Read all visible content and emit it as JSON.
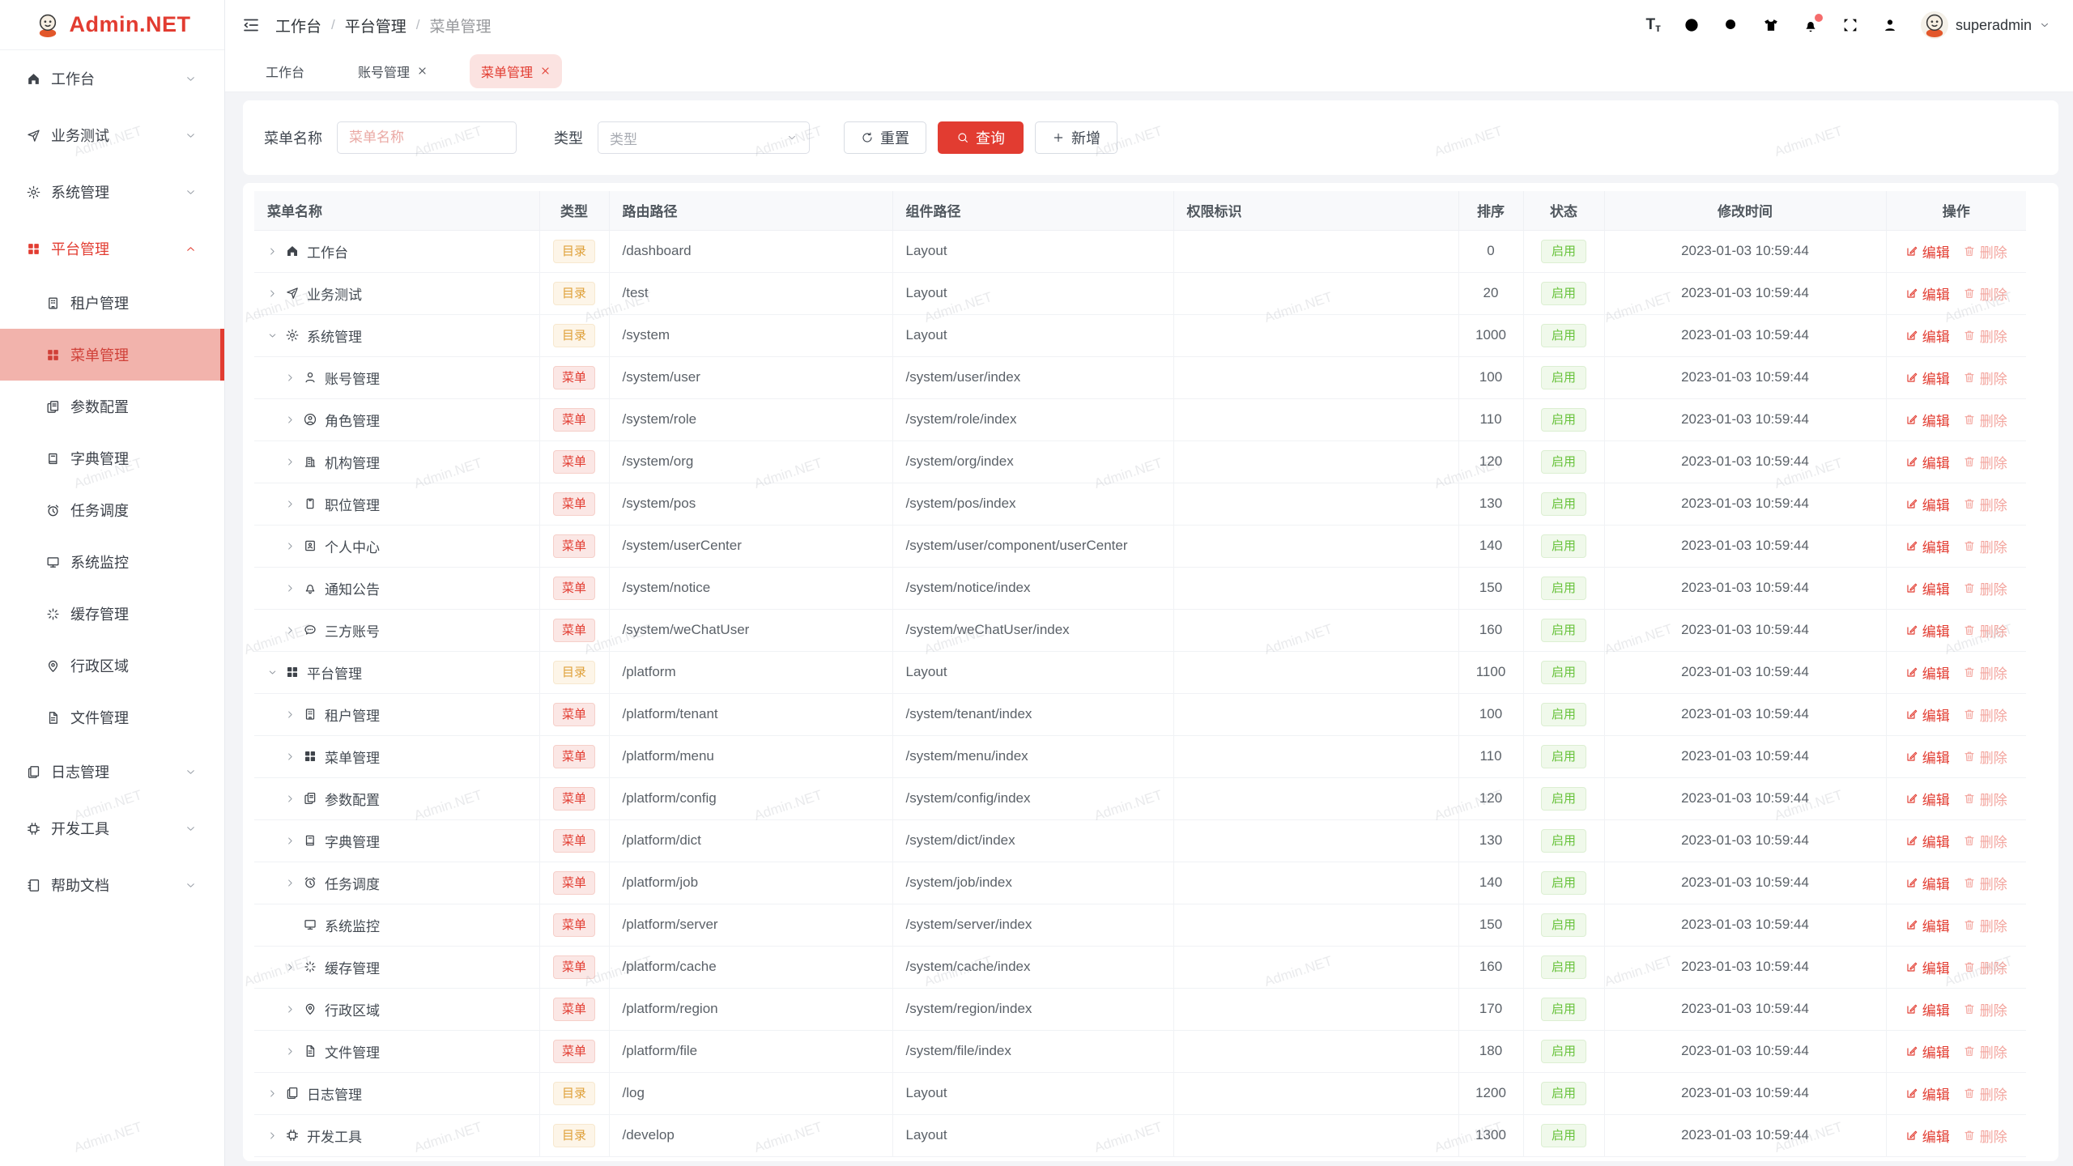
{
  "watermark": "Admin.NET",
  "colors": {
    "primary": "#e23c31",
    "success": "#67c23a",
    "warning": "#dfa038",
    "sidebar_active_bg": "#f2b3ac"
  },
  "sidebar": {
    "logo_text": "Admin.NET",
    "items": [
      {
        "label": "工作台",
        "icon": "home",
        "level": 0,
        "chevron": "down"
      },
      {
        "label": "业务测试",
        "icon": "send",
        "level": 0,
        "chevron": "down"
      },
      {
        "label": "系统管理",
        "icon": "gear",
        "level": 0,
        "chevron": "down"
      },
      {
        "label": "平台管理",
        "icon": "grid",
        "level": 0,
        "chevron": "up",
        "state": "open"
      },
      {
        "label": "租户管理",
        "icon": "tenant",
        "level": 1
      },
      {
        "label": "菜单管理",
        "icon": "grid",
        "level": 1,
        "state": "active"
      },
      {
        "label": "参数配置",
        "icon": "config",
        "level": 1
      },
      {
        "label": "字典管理",
        "icon": "book",
        "level": 1
      },
      {
        "label": "任务调度",
        "icon": "alarm",
        "level": 1
      },
      {
        "label": "系统监控",
        "icon": "monitor",
        "level": 1
      },
      {
        "label": "缓存管理",
        "icon": "spinner",
        "level": 1
      },
      {
        "label": "行政区域",
        "icon": "pin",
        "level": 1
      },
      {
        "label": "文件管理",
        "icon": "file",
        "level": 1
      },
      {
        "label": "日志管理",
        "icon": "logs",
        "level": 0,
        "chevron": "down"
      },
      {
        "label": "开发工具",
        "icon": "chip",
        "level": 0,
        "chevron": "down"
      },
      {
        "label": "帮助文档",
        "icon": "helpbook",
        "level": 0,
        "chevron": "down"
      }
    ]
  },
  "topbar": {
    "breadcrumb": [
      "工作台",
      "平台管理",
      "菜单管理"
    ],
    "tools": [
      "fontsize",
      "globe",
      "search",
      "tshirt",
      "bell",
      "fullscreen",
      "person"
    ],
    "username": "superadmin"
  },
  "tabs": [
    {
      "label": "工作台",
      "closable": false,
      "active": false
    },
    {
      "label": "账号管理",
      "closable": true,
      "active": false
    },
    {
      "label": "菜单管理",
      "closable": true,
      "active": true
    }
  ],
  "filter": {
    "name_label": "菜单名称",
    "name_placeholder": "菜单名称",
    "type_label": "类型",
    "type_placeholder": "类型",
    "reset_label": "重置",
    "query_label": "查询",
    "add_label": "新增"
  },
  "table": {
    "columns": [
      "菜单名称",
      "类型",
      "路由路径",
      "组件路径",
      "权限标识",
      "排序",
      "状态",
      "修改时间",
      "操作"
    ],
    "tag_dir": "目录",
    "tag_menu": "菜单",
    "status_enabled": "启用",
    "edit_label": "编辑",
    "delete_label": "删除",
    "rows": [
      {
        "name": "工作台",
        "icon": "home",
        "level": 0,
        "arrow": "right",
        "type": "dir",
        "route": "/dashboard",
        "component": "Layout",
        "perm": "",
        "order": "0",
        "status": "启用",
        "time": "2023-01-03 10:59:44"
      },
      {
        "name": "业务测试",
        "icon": "send",
        "level": 0,
        "arrow": "right",
        "type": "dir",
        "route": "/test",
        "component": "Layout",
        "perm": "",
        "order": "20",
        "status": "启用",
        "time": "2023-01-03 10:59:44"
      },
      {
        "name": "系统管理",
        "icon": "gear",
        "level": 0,
        "arrow": "down",
        "type": "dir",
        "route": "/system",
        "component": "Layout",
        "perm": "",
        "order": "1000",
        "status": "启用",
        "time": "2023-01-03 10:59:44"
      },
      {
        "name": "账号管理",
        "icon": "user",
        "level": 1,
        "arrow": "right",
        "type": "menu",
        "route": "/system/user",
        "component": "/system/user/index",
        "perm": "",
        "order": "100",
        "status": "启用",
        "time": "2023-01-03 10:59:44"
      },
      {
        "name": "角色管理",
        "icon": "role",
        "level": 1,
        "arrow": "right",
        "type": "menu",
        "route": "/system/role",
        "component": "/system/role/index",
        "perm": "",
        "order": "110",
        "status": "启用",
        "time": "2023-01-03 10:59:44"
      },
      {
        "name": "机构管理",
        "icon": "org",
        "level": 1,
        "arrow": "right",
        "type": "menu",
        "route": "/system/org",
        "component": "/system/org/index",
        "perm": "",
        "order": "120",
        "status": "启用",
        "time": "2023-01-03 10:59:44"
      },
      {
        "name": "职位管理",
        "icon": "pos",
        "level": 1,
        "arrow": "right",
        "type": "menu",
        "route": "/system/pos",
        "component": "/system/pos/index",
        "perm": "",
        "order": "130",
        "status": "启用",
        "time": "2023-01-03 10:59:44"
      },
      {
        "name": "个人中心",
        "icon": "idcard",
        "level": 1,
        "arrow": "right",
        "type": "menu",
        "route": "/system/userCenter",
        "component": "/system/user/component/userCenter",
        "perm": "",
        "order": "140",
        "status": "启用",
        "time": "2023-01-03 10:59:44"
      },
      {
        "name": "通知公告",
        "icon": "bell",
        "level": 1,
        "arrow": "right",
        "type": "menu",
        "route": "/system/notice",
        "component": "/system/notice/index",
        "perm": "",
        "order": "150",
        "status": "启用",
        "time": "2023-01-03 10:59:44"
      },
      {
        "name": "三方账号",
        "icon": "chat",
        "level": 1,
        "arrow": "right",
        "type": "menu",
        "route": "/system/weChatUser",
        "component": "/system/weChatUser/index",
        "perm": "",
        "order": "160",
        "status": "启用",
        "time": "2023-01-03 10:59:44"
      },
      {
        "name": "平台管理",
        "icon": "grid",
        "level": 0,
        "arrow": "down",
        "type": "dir",
        "route": "/platform",
        "component": "Layout",
        "perm": "",
        "order": "1100",
        "status": "启用",
        "time": "2023-01-03 10:59:44"
      },
      {
        "name": "租户管理",
        "icon": "tenant",
        "level": 1,
        "arrow": "right",
        "type": "menu",
        "route": "/platform/tenant",
        "component": "/system/tenant/index",
        "perm": "",
        "order": "100",
        "status": "启用",
        "time": "2023-01-03 10:59:44"
      },
      {
        "name": "菜单管理",
        "icon": "grid",
        "level": 1,
        "arrow": "right",
        "type": "menu",
        "route": "/platform/menu",
        "component": "/system/menu/index",
        "perm": "",
        "order": "110",
        "status": "启用",
        "time": "2023-01-03 10:59:44"
      },
      {
        "name": "参数配置",
        "icon": "config",
        "level": 1,
        "arrow": "right",
        "type": "menu",
        "route": "/platform/config",
        "component": "/system/config/index",
        "perm": "",
        "order": "120",
        "status": "启用",
        "time": "2023-01-03 10:59:44"
      },
      {
        "name": "字典管理",
        "icon": "book",
        "level": 1,
        "arrow": "right",
        "type": "menu",
        "route": "/platform/dict",
        "component": "/system/dict/index",
        "perm": "",
        "order": "130",
        "status": "启用",
        "time": "2023-01-03 10:59:44"
      },
      {
        "name": "任务调度",
        "icon": "alarm",
        "level": 1,
        "arrow": "right",
        "type": "menu",
        "route": "/platform/job",
        "component": "/system/job/index",
        "perm": "",
        "order": "140",
        "status": "启用",
        "time": "2023-01-03 10:59:44"
      },
      {
        "name": "系统监控",
        "icon": "monitor",
        "level": 1,
        "arrow": "none",
        "type": "menu",
        "route": "/platform/server",
        "component": "/system/server/index",
        "perm": "",
        "order": "150",
        "status": "启用",
        "time": "2023-01-03 10:59:44"
      },
      {
        "name": "缓存管理",
        "icon": "spinner",
        "level": 1,
        "arrow": "right",
        "type": "menu",
        "route": "/platform/cache",
        "component": "/system/cache/index",
        "perm": "",
        "order": "160",
        "status": "启用",
        "time": "2023-01-03 10:59:44"
      },
      {
        "name": "行政区域",
        "icon": "pin",
        "level": 1,
        "arrow": "right",
        "type": "menu",
        "route": "/platform/region",
        "component": "/system/region/index",
        "perm": "",
        "order": "170",
        "status": "启用",
        "time": "2023-01-03 10:59:44"
      },
      {
        "name": "文件管理",
        "icon": "file",
        "level": 1,
        "arrow": "right",
        "type": "menu",
        "route": "/platform/file",
        "component": "/system/file/index",
        "perm": "",
        "order": "180",
        "status": "启用",
        "time": "2023-01-03 10:59:44"
      },
      {
        "name": "日志管理",
        "icon": "logs",
        "level": 0,
        "arrow": "right",
        "type": "dir",
        "route": "/log",
        "component": "Layout",
        "perm": "",
        "order": "1200",
        "status": "启用",
        "time": "2023-01-03 10:59:44"
      },
      {
        "name": "开发工具",
        "icon": "chip",
        "level": 0,
        "arrow": "right",
        "type": "dir",
        "route": "/develop",
        "component": "Layout",
        "perm": "",
        "order": "1300",
        "status": "启用",
        "time": "2023-01-03 10:59:44"
      }
    ]
  }
}
